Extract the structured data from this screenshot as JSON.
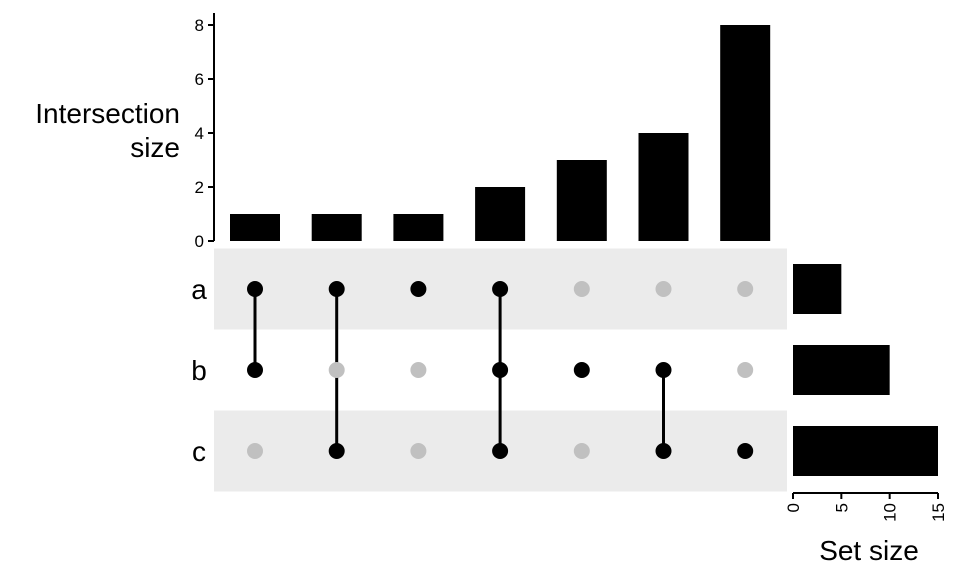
{
  "chart_data": {
    "type": "upset",
    "sets": [
      {
        "name": "a",
        "size": 5
      },
      {
        "name": "b",
        "size": 10
      },
      {
        "name": "c",
        "size": 15
      }
    ],
    "intersections": [
      {
        "members": [
          "a",
          "b"
        ],
        "size": 1
      },
      {
        "members": [
          "a",
          "c"
        ],
        "size": 1
      },
      {
        "members": [
          "a"
        ],
        "size": 1
      },
      {
        "members": [
          "a",
          "b",
          "c"
        ],
        "size": 2
      },
      {
        "members": [
          "b"
        ],
        "size": 3
      },
      {
        "members": [
          "b",
          "c"
        ],
        "size": 4
      },
      {
        "members": [
          "c"
        ],
        "size": 8
      }
    ],
    "intersection_axis": {
      "label_line1": "Intersection",
      "label_line2": "size",
      "ylim": [
        0,
        8
      ],
      "ticks": [
        0,
        2,
        4,
        6,
        8
      ]
    },
    "set_size_axis": {
      "label": "Set size",
      "xlim": [
        0,
        15
      ],
      "ticks": [
        0,
        5,
        10,
        15
      ]
    },
    "colors": {
      "bar": "#000000",
      "dot_active": "#000000",
      "dot_inactive": "#c0c0c0",
      "stripe": "#ebebeb"
    }
  }
}
